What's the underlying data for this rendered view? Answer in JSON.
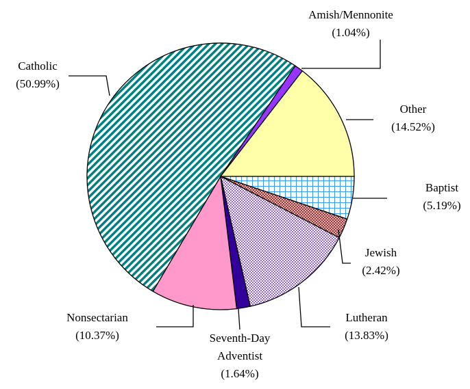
{
  "chart_data": {
    "type": "pie",
    "categories": [
      "Baptist",
      "Jewish",
      "Lutheran",
      "Seventh-Day Adventist",
      "Nonsectarian",
      "Catholic",
      "Amish/Mennonite",
      "Other"
    ],
    "values": [
      5.19,
      2.42,
      13.83,
      1.64,
      10.37,
      50.99,
      1.04,
      14.52
    ],
    "value_labels": [
      "(5.19%)",
      "(2.42%)",
      "(13.83%)",
      "(1.64%)",
      "(10.37%)",
      "(50.99%)",
      "(1.04%)",
      "(14.52%)"
    ],
    "colors": [
      "#3399ff",
      "#993333",
      "#9966cc",
      "#330099",
      "#ff99cc",
      "#008080",
      "#9933ff",
      "#ffffaa"
    ],
    "fill_patterns": [
      "grid",
      "crosshatch",
      "checker",
      "solid",
      "solid",
      "diagonal",
      "solid",
      "solid"
    ]
  }
}
